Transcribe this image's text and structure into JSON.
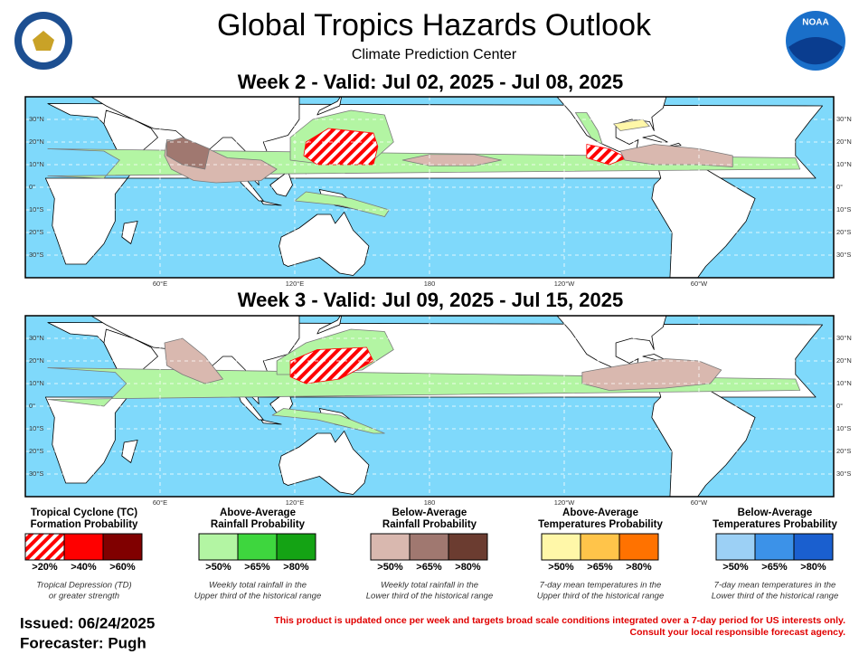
{
  "header": {
    "title": "Global Tropics Hazards Outlook",
    "subtitle": "Climate Prediction Center",
    "logo_text": "NOAA"
  },
  "maps": [
    {
      "title": "Week 2 - Valid: Jul 02, 2025 - Jul 08, 2025"
    },
    {
      "title": "Week 3 - Valid: Jul 09, 2025 - Jul 15, 2025"
    }
  ],
  "map_axes": {
    "lat_labels": [
      "30°N",
      "20°N",
      "10°N",
      "0°",
      "10°S",
      "20°S",
      "30°S"
    ],
    "lon_labels": [
      "60°E",
      "120°E",
      "180",
      "120°W",
      "60°W"
    ]
  },
  "legend": [
    {
      "title": [
        "Tropical Cyclone (TC)",
        "Formation Probability"
      ],
      "items": [
        ">20%",
        ">40%",
        ">60%"
      ],
      "note": [
        "Tropical Depression (TD)",
        "or greater strength"
      ]
    },
    {
      "title": [
        "Above-Average",
        "Rainfall Probability"
      ],
      "items": [
        ">50%",
        ">65%",
        ">80%"
      ],
      "note": [
        "Weekly total rainfall in the",
        "Upper third of the historical range"
      ]
    },
    {
      "title": [
        "Below-Average",
        "Rainfall Probability"
      ],
      "items": [
        ">50%",
        ">65%",
        ">80%"
      ],
      "note": [
        "Weekly total rainfall in the",
        "Lower third of the historical range"
      ]
    },
    {
      "title": [
        "Above-Average",
        "Temperatures Probability"
      ],
      "items": [
        ">50%",
        ">65%",
        ">80%"
      ],
      "note": [
        "7-day mean temperatures in the",
        "Upper third of the historical range"
      ]
    },
    {
      "title": [
        "Below-Average",
        "Temperatures Probability"
      ],
      "items": [
        ">50%",
        ">65%",
        ">80%"
      ],
      "note": [
        "7-day mean temperatures in the",
        "Lower third of the historical range"
      ]
    }
  ],
  "footer": {
    "issued": "Issued: 06/24/2025",
    "forecaster": "Forecaster: Pugh",
    "disclaimer": [
      "This product is updated once per week and targets broad scale conditions integrated over a 7-day period for US interests only.",
      "Consult your local responsible forecast agency."
    ]
  }
}
